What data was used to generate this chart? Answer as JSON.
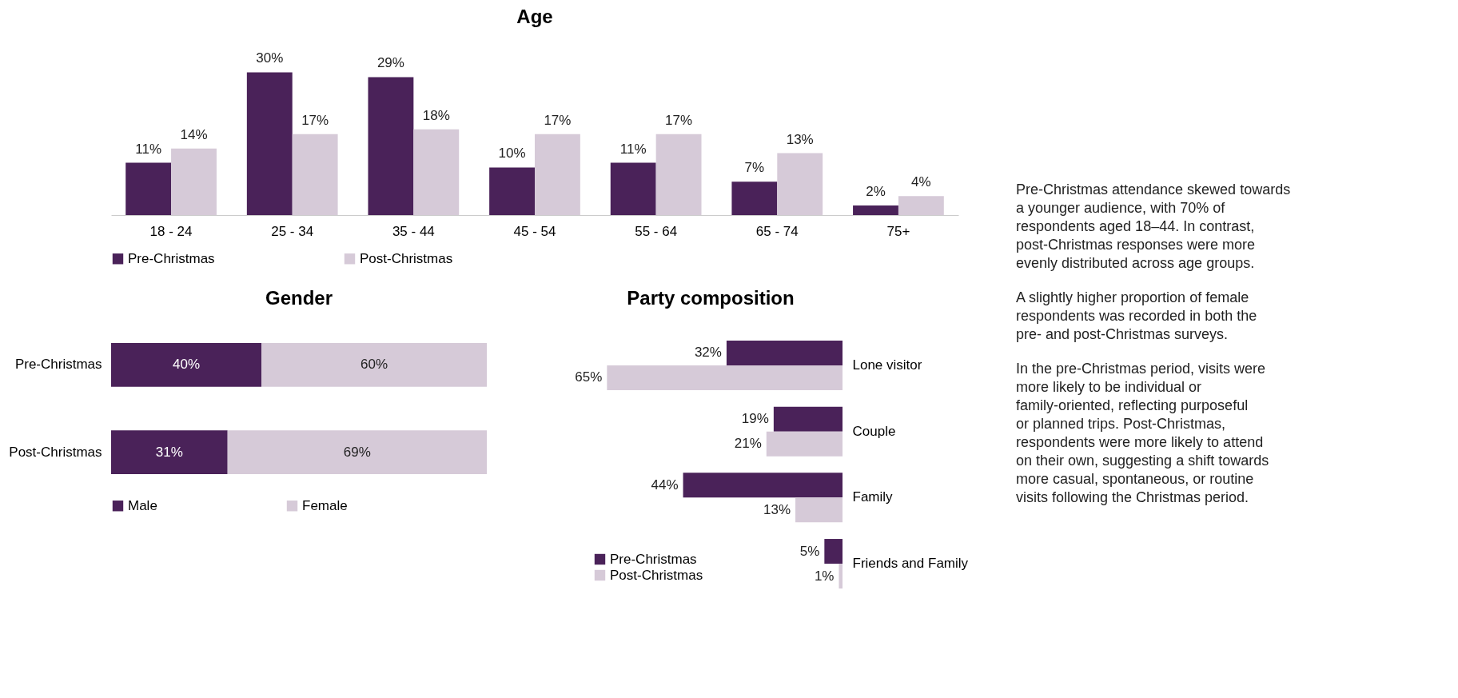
{
  "chart_data": [
    {
      "type": "bar",
      "title": "Age",
      "categories": [
        "18 - 24",
        "25 - 34",
        "35 - 44",
        "45 - 54",
        "55 - 64",
        "65 - 74",
        "75+"
      ],
      "series": [
        {
          "name": "Pre-Christmas",
          "color": "#4a2259",
          "values": [
            11,
            30,
            29,
            10,
            11,
            7,
            2
          ],
          "value_labels": [
            "11%",
            "30%",
            "29%",
            "10%",
            "11%",
            "7%",
            "2%"
          ]
        },
        {
          "name": "Post-Christmas",
          "color": "#d6cad8",
          "values": [
            14,
            17,
            18,
            17,
            17,
            13,
            4
          ],
          "value_labels": [
            "14%",
            "17%",
            "18%",
            "17%",
            "17%",
            "13%",
            "4%"
          ]
        }
      ],
      "legend": "bottom",
      "grid": false
    },
    {
      "type": "bar",
      "title": "Gender",
      "orientation": "horizontal",
      "stacked": true,
      "categories": [
        "Pre-Christmas",
        "Post-Christmas"
      ],
      "series": [
        {
          "name": "Male",
          "color": "#4a2259",
          "values": [
            40,
            31
          ],
          "value_labels": [
            "40%",
            "31%"
          ]
        },
        {
          "name": "Female",
          "color": "#d6cad8",
          "values": [
            60,
            69
          ],
          "value_labels": [
            "60%",
            "69%"
          ]
        }
      ],
      "legend": "bottom",
      "grid": false
    },
    {
      "type": "bar",
      "title": "Party composition",
      "orientation": "horizontal",
      "categories": [
        "Lone visitor",
        "Couple",
        "Family",
        "Friends and Family"
      ],
      "series": [
        {
          "name": "Pre-Christmas",
          "color": "#4a2259",
          "values": [
            32,
            19,
            44,
            5
          ],
          "value_labels": [
            "32%",
            "19%",
            "44%",
            "5%"
          ]
        },
        {
          "name": "Post-Christmas",
          "color": "#d6cad8",
          "values": [
            65,
            21,
            13,
            1
          ],
          "value_labels": [
            "65%",
            "21%",
            "13%",
            "1%"
          ]
        }
      ],
      "legend": "bottom left",
      "grid": false
    },
    {
      "type": "other",
      "annotations": [
        "Pre-Christmas attendance skewed towards a younger audience, with 70% of respondents aged 18–44. In contrast, post-Christmas responses were more evenly distributed across age groups.",
        "A slightly higher proportion of female respondents was recorded in both the pre- and post-Christmas surveys.",
        "In the pre-Christmas period, visits were more likely to be individual or family-oriented, reflecting purposeful or planned trips. Post-Christmas, respondents were more likely to attend on their own, suggesting a shift towards more casual, spontaneous, or routine visits following the Christmas period."
      ]
    }
  ]
}
